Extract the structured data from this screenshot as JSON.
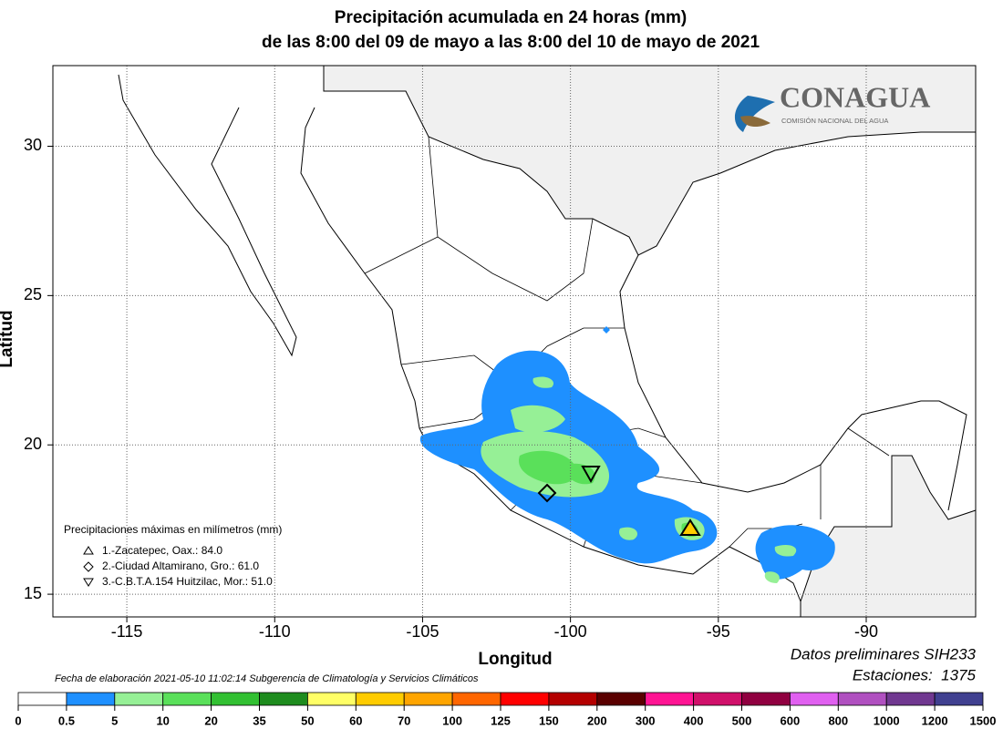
{
  "header": {
    "title": [
      "Precipitación acumulada en 24 horas (mm)",
      "de las 8:00 del 09 de mayo a las 8:00 del 10 de mayo de 2021"
    ]
  },
  "map": {
    "xlim": [
      -117.5,
      -86.3
    ],
    "ylim": [
      14.24,
      32.7
    ],
    "xticks": [
      -115,
      -110,
      -105,
      -100,
      -95,
      -90
    ],
    "yticks": [
      15,
      20,
      25,
      30
    ],
    "x_label": "Longitud",
    "y_label": "Latitud",
    "grid": true,
    "logo": {
      "name": "CONAGUA",
      "subtitle": "COMISIÓN NACIONAL DEL AGUA"
    }
  },
  "stations_legend": {
    "title": "Precipitaciones máximas en milímetros (mm)",
    "items": [
      "1.-Zacatepec, Oax.: 84.0",
      "2.-Ciudad Altamirano, Gro.: 61.0",
      "3.-C.B.T.A.154 Huitzilac, Mor.: 51.0"
    ]
  },
  "notes": {
    "created": "Fecha de elaboración 2021-05-10 11:02:14 Subgerencia de Climatología y Servicios Climáticos",
    "data_source": "Datos preliminares SIH233",
    "stations": "Estaciones:  1375"
  },
  "colorbar": {
    "bounds": [
      0,
      0.5,
      5,
      10,
      20,
      35,
      50,
      60,
      70,
      100,
      125,
      150,
      200,
      300,
      400,
      500,
      600,
      800,
      1000,
      1200,
      1500
    ],
    "colors": [
      "#ffffff",
      "#1e90ff",
      "#96f096",
      "#5ae05a",
      "#32c032",
      "#1e8c1e",
      "#ffff66",
      "#ffcc00",
      "#ffa500",
      "#ff6600",
      "#ff0000",
      "#b40000",
      "#5a0000",
      "#ff1493",
      "#d0106a",
      "#900040",
      "#e060f0",
      "#b050c0",
      "#703890",
      "#404090"
    ]
  }
}
